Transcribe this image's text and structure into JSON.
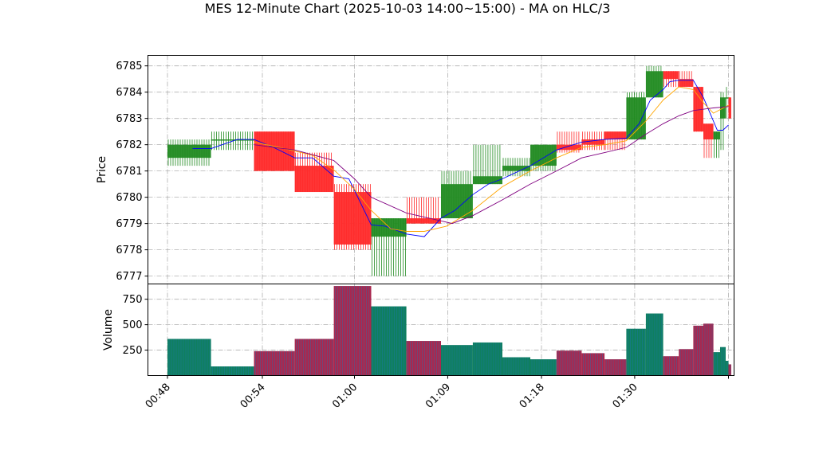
{
  "chart_data": {
    "type": "candlestick",
    "title": "MES 12-Minute Chart (2025-10-03 14:00~15:00) - MA on HLC/3",
    "price_panel": {
      "ylabel": "Price",
      "ylim": [
        6776.7,
        6785.4
      ],
      "yticks": [
        6777,
        6778,
        6779,
        6780,
        6781,
        6782,
        6783,
        6784,
        6785
      ],
      "grid": true
    },
    "volume_panel": {
      "ylabel": "Volume",
      "ylim": [
        0,
        900
      ],
      "yticks": [
        250,
        500,
        750
      ],
      "grid": true
    },
    "x_axis": {
      "xlim": [
        -0.35,
        10.15
      ],
      "ticks": [
        {
          "x": 0,
          "label": "00:48"
        },
        {
          "x": 1.7,
          "label": "00:54"
        },
        {
          "x": 3.35,
          "label": "01:00"
        },
        {
          "x": 5.02,
          "label": "01:09"
        },
        {
          "x": 6.7,
          "label": "01:18"
        },
        {
          "x": 8.37,
          "label": "01:30"
        },
        {
          "x": 10.05,
          "label": ""
        }
      ]
    },
    "candles": [
      {
        "x0": 0.0,
        "x1": 0.78,
        "open": 6781.5,
        "high": 6782.2,
        "low": 6781.2,
        "close": 6782.0,
        "volume": 360
      },
      {
        "x0": 0.78,
        "x1": 1.55,
        "open": 6782.2,
        "high": 6782.5,
        "low": 6781.8,
        "close": 6782.2,
        "volume": 90
      },
      {
        "x0": 1.55,
        "x1": 2.28,
        "open": 6782.5,
        "high": 6782.5,
        "low": 6781.0,
        "close": 6781.0,
        "volume": 240
      },
      {
        "x0": 2.28,
        "x1": 2.98,
        "open": 6781.2,
        "high": 6781.7,
        "low": 6780.2,
        "close": 6780.2,
        "volume": 360
      },
      {
        "x0": 2.98,
        "x1": 3.65,
        "open": 6780.2,
        "high": 6780.5,
        "low": 6778.0,
        "close": 6778.2,
        "volume": 880
      },
      {
        "x0": 3.65,
        "x1": 4.28,
        "open": 6778.5,
        "high": 6779.2,
        "low": 6777.0,
        "close": 6779.2,
        "volume": 680
      },
      {
        "x0": 4.28,
        "x1": 4.9,
        "open": 6779.2,
        "high": 6780.0,
        "low": 6779.0,
        "close": 6779.0,
        "volume": 340
      },
      {
        "x0": 4.9,
        "x1": 5.47,
        "open": 6779.2,
        "high": 6781.0,
        "low": 6779.2,
        "close": 6780.5,
        "volume": 300
      },
      {
        "x0": 5.47,
        "x1": 6.0,
        "open": 6780.5,
        "high": 6782.0,
        "low": 6780.5,
        "close": 6780.8,
        "volume": 325
      },
      {
        "x0": 6.0,
        "x1": 6.5,
        "open": 6781.0,
        "high": 6781.5,
        "low": 6780.8,
        "close": 6781.2,
        "volume": 180
      },
      {
        "x0": 6.5,
        "x1": 6.97,
        "open": 6781.2,
        "high": 6782.0,
        "low": 6781.0,
        "close": 6782.0,
        "volume": 160
      },
      {
        "x0": 6.97,
        "x1": 7.42,
        "open": 6782.0,
        "high": 6782.5,
        "low": 6781.7,
        "close": 6781.8,
        "volume": 245
      },
      {
        "x0": 7.42,
        "x1": 7.83,
        "open": 6782.2,
        "high": 6782.5,
        "low": 6781.8,
        "close": 6782.0,
        "volume": 220
      },
      {
        "x0": 7.83,
        "x1": 8.22,
        "open": 6782.5,
        "high": 6782.5,
        "low": 6781.8,
        "close": 6782.2,
        "volume": 160
      },
      {
        "x0": 8.22,
        "x1": 8.57,
        "open": 6782.2,
        "high": 6784.0,
        "low": 6782.2,
        "close": 6783.8,
        "volume": 460
      },
      {
        "x0": 8.57,
        "x1": 8.88,
        "open": 6783.8,
        "high": 6785.0,
        "low": 6783.8,
        "close": 6784.8,
        "volume": 610
      },
      {
        "x0": 8.88,
        "x1": 9.16,
        "open": 6784.8,
        "high": 6784.8,
        "low": 6784.2,
        "close": 6784.5,
        "volume": 190
      },
      {
        "x0": 9.16,
        "x1": 9.42,
        "open": 6784.5,
        "high": 6784.8,
        "low": 6784.2,
        "close": 6784.2,
        "volume": 260
      },
      {
        "x0": 9.42,
        "x1": 9.6,
        "open": 6784.2,
        "high": 6784.2,
        "low": 6782.5,
        "close": 6782.5,
        "volume": 490
      },
      {
        "x0": 9.6,
        "x1": 9.78,
        "open": 6782.8,
        "high": 6782.8,
        "low": 6781.5,
        "close": 6782.2,
        "volume": 510
      },
      {
        "x0": 9.78,
        "x1": 9.9,
        "open": 6782.2,
        "high": 6782.5,
        "low": 6781.5,
        "close": 6782.5,
        "volume": 230
      },
      {
        "x0": 9.9,
        "x1": 10.0,
        "open": 6783.0,
        "high": 6784.0,
        "low": 6781.8,
        "close": 6783.8,
        "volume": 280
      },
      {
        "x0": 10.0,
        "x1": 10.05,
        "open": 6783.8,
        "high": 6784.2,
        "low": 6783.0,
        "close": 6783.8,
        "volume": 145
      },
      {
        "x0": 10.05,
        "x1": 10.1,
        "open": 6783.8,
        "high": 6783.8,
        "low": 6783.0,
        "close": 6783.0,
        "volume": 110
      }
    ],
    "ma_lines": [
      {
        "color": "#0000ff",
        "points": [
          [
            0.45,
            6781.85
          ],
          [
            0.78,
            6781.85
          ],
          [
            1.25,
            6782.2
          ],
          [
            1.55,
            6782.2
          ],
          [
            1.9,
            6781.9
          ],
          [
            2.28,
            6781.5
          ],
          [
            2.6,
            6781.5
          ],
          [
            2.98,
            6780.8
          ],
          [
            3.25,
            6780.7
          ],
          [
            3.65,
            6778.95
          ],
          [
            3.9,
            6778.9
          ],
          [
            4.28,
            6778.6
          ],
          [
            4.6,
            6778.5
          ],
          [
            4.9,
            6779.2
          ],
          [
            5.15,
            6779.5
          ],
          [
            5.47,
            6780.1
          ],
          [
            5.75,
            6780.5
          ],
          [
            6.0,
            6780.7
          ],
          [
            6.5,
            6781.2
          ],
          [
            6.97,
            6781.8
          ],
          [
            7.42,
            6782.1
          ],
          [
            7.83,
            6782.2
          ],
          [
            8.22,
            6782.25
          ],
          [
            8.45,
            6782.8
          ],
          [
            8.65,
            6783.7
          ],
          [
            8.88,
            6784.1
          ],
          [
            9.0,
            6784.4
          ],
          [
            9.16,
            6784.45
          ],
          [
            9.42,
            6784.45
          ],
          [
            9.6,
            6783.8
          ],
          [
            9.78,
            6782.9
          ],
          [
            9.85,
            6782.55
          ],
          [
            9.95,
            6782.55
          ],
          [
            10.05,
            6782.75
          ]
        ]
      },
      {
        "color": "#ffa500",
        "points": [
          [
            1.55,
            6782.1
          ],
          [
            2.0,
            6781.9
          ],
          [
            2.6,
            6781.6
          ],
          [
            3.0,
            6781.0
          ],
          [
            3.35,
            6780.3
          ],
          [
            3.65,
            6779.5
          ],
          [
            4.0,
            6778.8
          ],
          [
            4.28,
            6778.7
          ],
          [
            4.6,
            6778.7
          ],
          [
            5.0,
            6778.9
          ],
          [
            5.47,
            6779.5
          ],
          [
            6.0,
            6780.4
          ],
          [
            6.5,
            6781.0
          ],
          [
            6.97,
            6781.5
          ],
          [
            7.42,
            6781.9
          ],
          [
            7.83,
            6782.0
          ],
          [
            8.22,
            6782.15
          ],
          [
            8.57,
            6782.9
          ],
          [
            8.88,
            6783.7
          ],
          [
            9.16,
            6784.2
          ],
          [
            9.42,
            6784.1
          ],
          [
            9.6,
            6783.6
          ],
          [
            9.78,
            6783.2
          ],
          [
            10.05,
            6783.5
          ]
        ]
      },
      {
        "color": "#800080",
        "points": [
          [
            1.55,
            6782.0
          ],
          [
            2.28,
            6781.8
          ],
          [
            2.98,
            6781.4
          ],
          [
            3.35,
            6780.7
          ],
          [
            3.65,
            6780.0
          ],
          [
            4.28,
            6779.4
          ],
          [
            4.9,
            6779.1
          ],
          [
            5.1,
            6779.0
          ],
          [
            5.47,
            6779.3
          ],
          [
            6.0,
            6779.9
          ],
          [
            6.5,
            6780.5
          ],
          [
            6.97,
            6781.0
          ],
          [
            7.42,
            6781.5
          ],
          [
            7.83,
            6781.7
          ],
          [
            8.22,
            6781.9
          ],
          [
            8.57,
            6782.4
          ],
          [
            8.88,
            6782.8
          ],
          [
            9.16,
            6783.1
          ],
          [
            9.42,
            6783.3
          ],
          [
            9.78,
            6783.4
          ],
          [
            10.05,
            6783.45
          ]
        ]
      }
    ],
    "colors": {
      "up": "#228b22",
      "down": "#ff2a2a",
      "vol_up": "#0f7f5f",
      "vol_down": "#a8284f",
      "vol_stripe": "#1f77b4"
    }
  }
}
